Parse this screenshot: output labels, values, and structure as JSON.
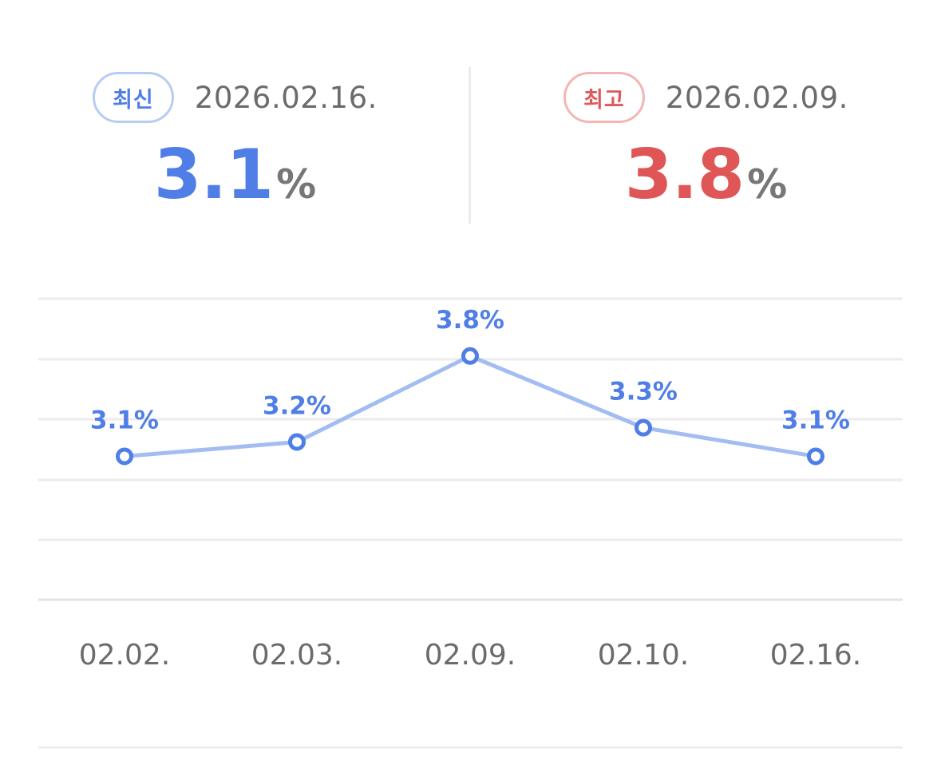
{
  "summary": {
    "latest": {
      "badge": "최신",
      "date": "2026.02.16.",
      "value": "3.1",
      "unit": "%"
    },
    "highest": {
      "badge": "최고",
      "date": "2026.02.09.",
      "value": "3.8",
      "unit": "%"
    }
  },
  "colors": {
    "latest_accent": "#4f7ee6",
    "highest_accent": "#e05555",
    "line": "#a3bdf2",
    "point": "#4f7ee6",
    "grid": "#ececec",
    "tick_text": "#6b6b6b"
  },
  "chart_data": {
    "type": "line",
    "categories": [
      "02.02.",
      "02.03.",
      "02.09.",
      "02.10.",
      "02.16."
    ],
    "series": [
      {
        "values": [
          3.1,
          3.2,
          3.8,
          3.3,
          3.1
        ],
        "labels": [
          "3.1%",
          "3.2%",
          "3.8%",
          "3.3%",
          "3.1%"
        ]
      }
    ],
    "ylim": [
      2.1,
      4.2
    ],
    "grid": true,
    "legend": "none"
  }
}
